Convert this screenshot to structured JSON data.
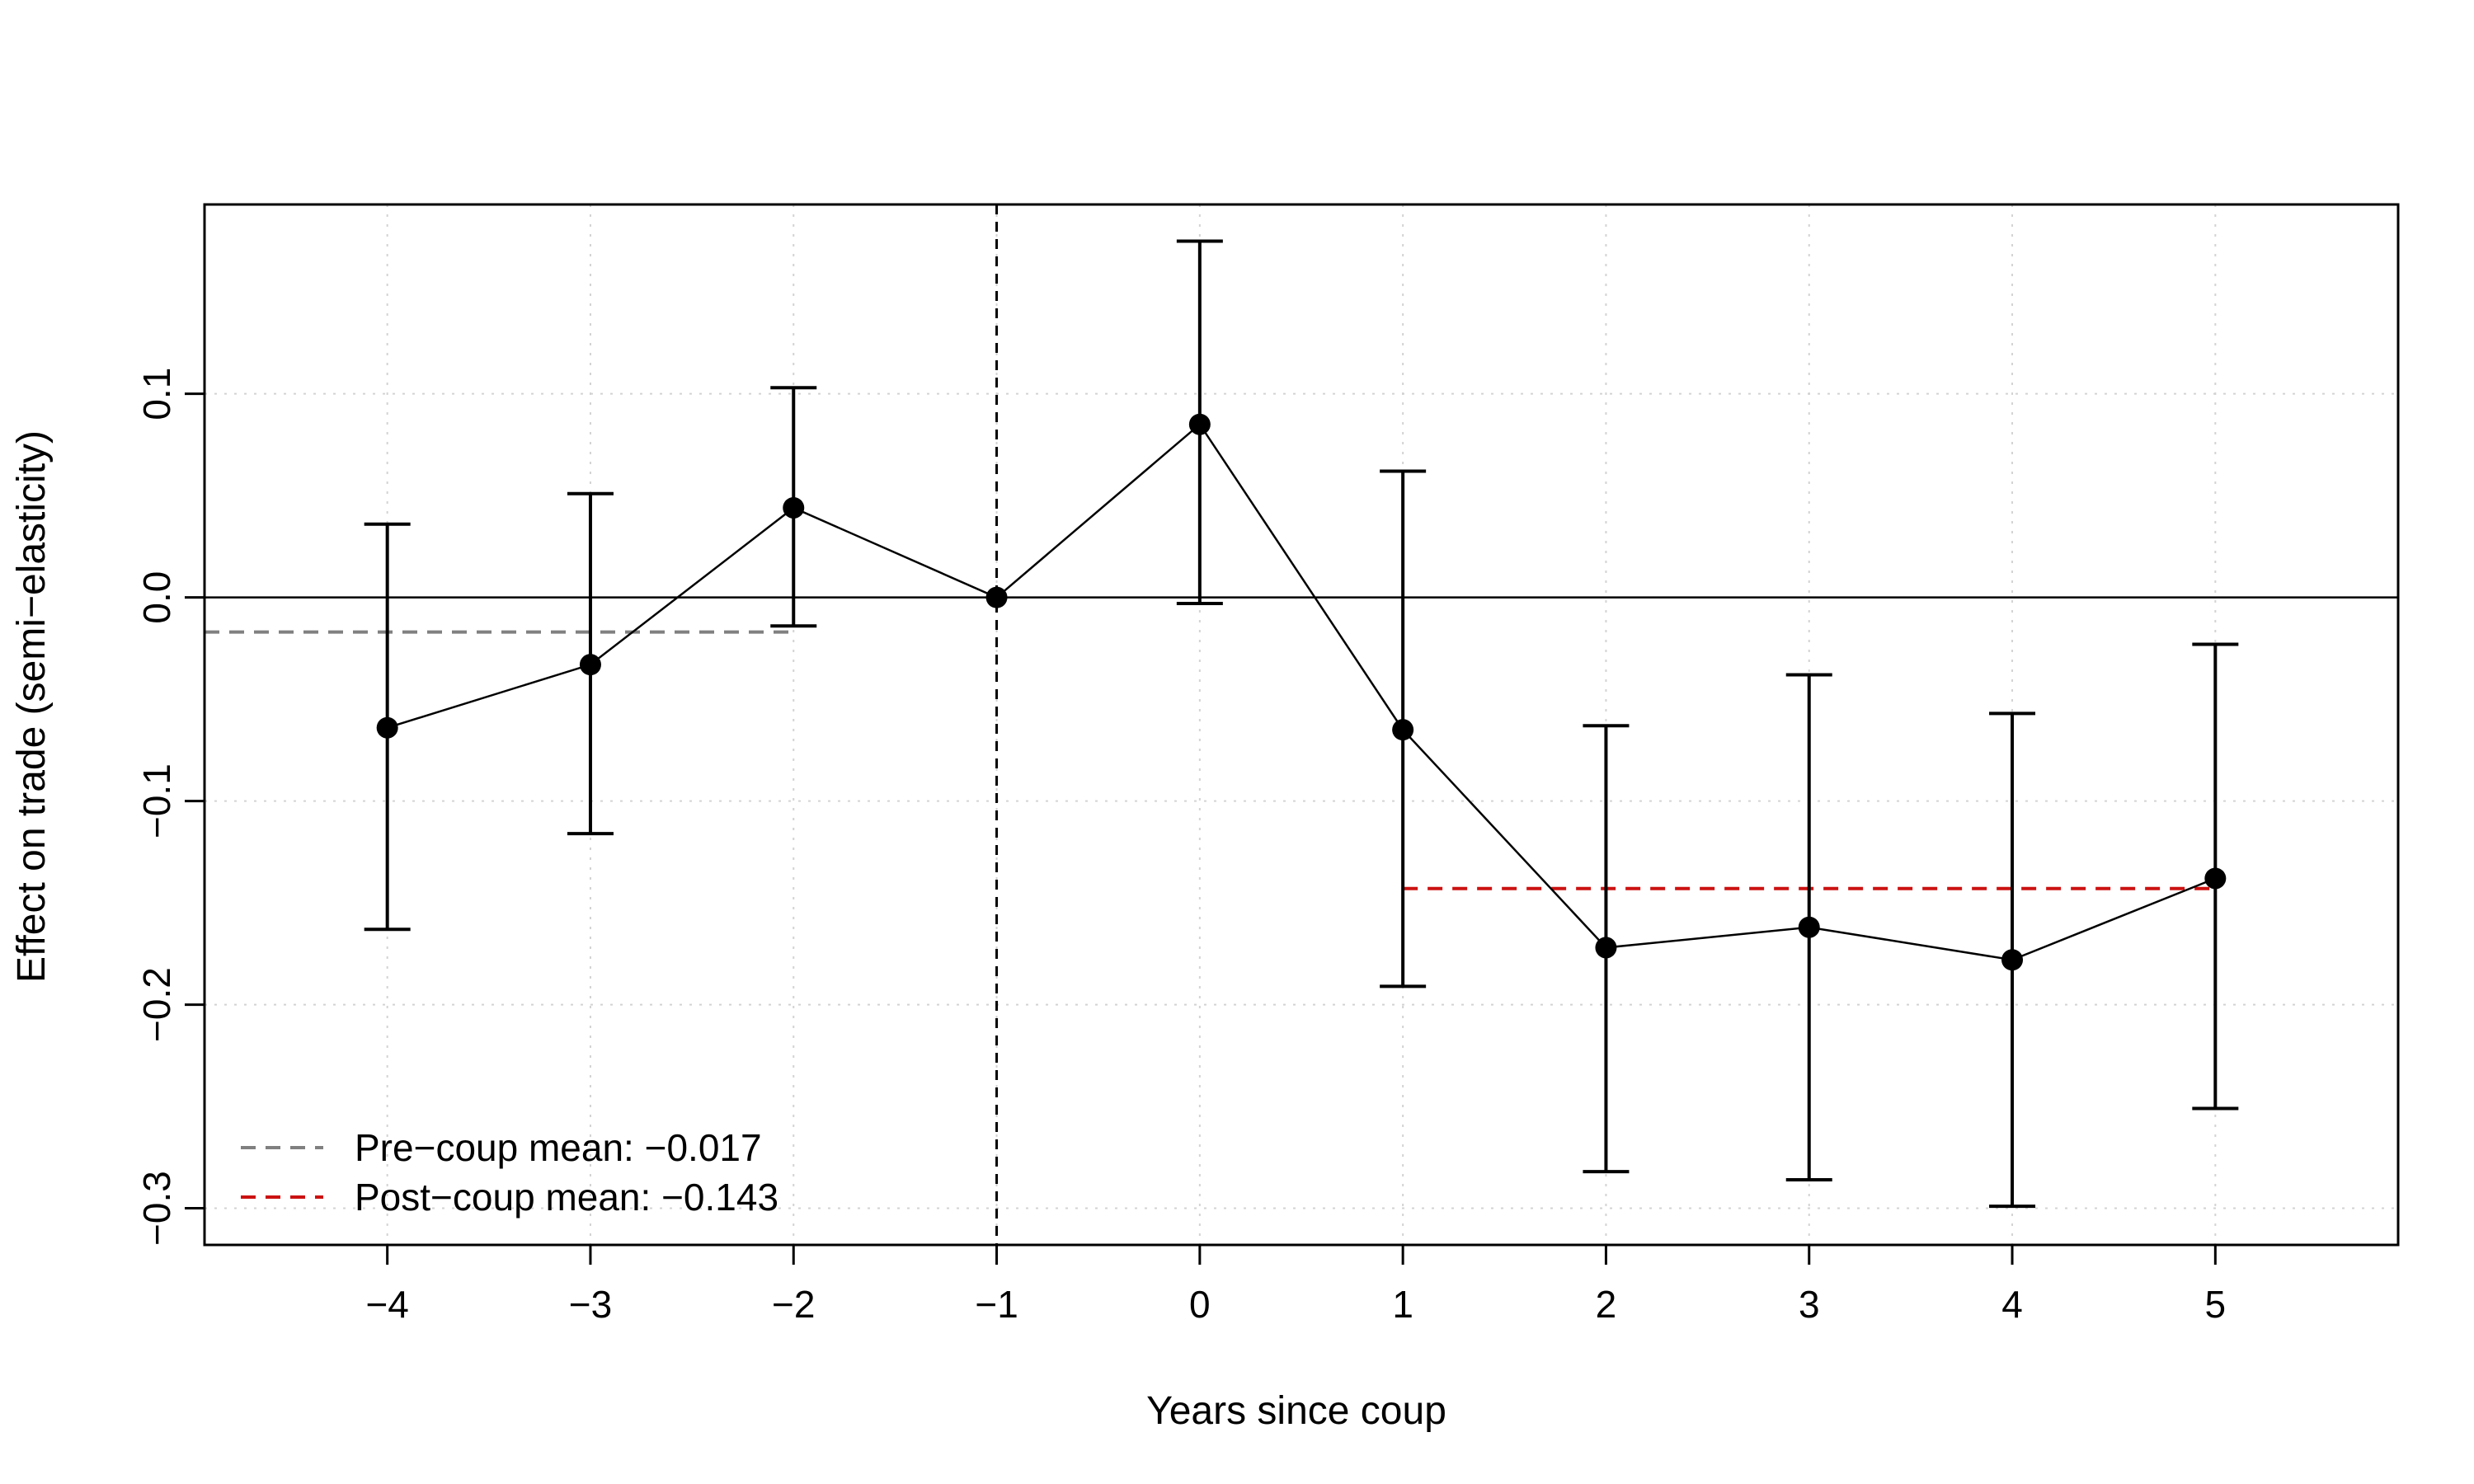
{
  "chart_data": {
    "type": "line",
    "xlabel": "Years since coup",
    "ylabel": "Effect on trade (semi−elasticity)",
    "x": [
      -4,
      -3,
      -2,
      -1,
      0,
      1,
      2,
      3,
      4,
      5
    ],
    "x_tick_labels": [
      "−4",
      "−3",
      "−2",
      "−1",
      "0",
      "1",
      "2",
      "3",
      "4",
      "5"
    ],
    "y_ticks": [
      -0.3,
      -0.2,
      -0.1,
      0.0,
      0.1
    ],
    "y_tick_labels": [
      "−0.3",
      "−0.2",
      "−0.1",
      "0.0",
      "0.1"
    ],
    "xlim": [
      -4.9,
      5.9
    ],
    "ylim": [
      -0.318,
      0.193
    ],
    "grid": true,
    "series": [
      {
        "values": [
          -0.064,
          -0.033,
          0.044,
          0.0,
          0.085,
          -0.065,
          -0.172,
          -0.162,
          -0.178,
          -0.138
        ],
        "ci_low": [
          -0.163,
          -0.116,
          -0.014,
          null,
          -0.003,
          -0.191,
          -0.282,
          -0.286,
          -0.299,
          -0.251
        ],
        "ci_high": [
          0.036,
          0.051,
          0.103,
          null,
          0.175,
          0.062,
          -0.063,
          -0.038,
          -0.057,
          -0.023
        ],
        "color": "#000000"
      }
    ],
    "reference_lines": {
      "zero_line_y": 0.0,
      "event_line_x": -1
    },
    "mean_lines": [
      {
        "label": "Pre−coup mean: −0.017",
        "value": -0.017,
        "x_from": -4.9,
        "x_to": -2,
        "color": "#808080"
      },
      {
        "label": "Post−coup mean: −0.143",
        "value": -0.143,
        "x_from": 1,
        "x_to": 5,
        "color": "#cc1111"
      }
    ],
    "legend": {
      "position": "bottom-left",
      "entries": [
        "Pre−coup mean: −0.017",
        "Post−coup mean: −0.143"
      ]
    }
  }
}
